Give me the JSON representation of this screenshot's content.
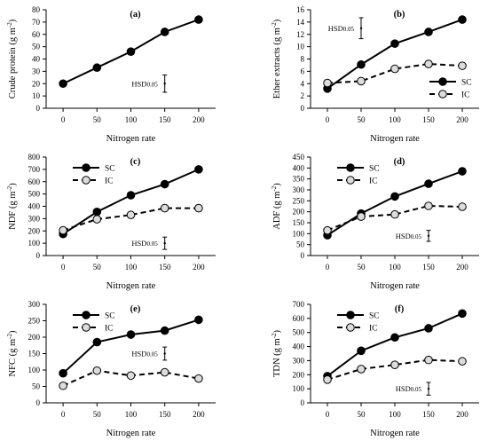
{
  "figure": {
    "xlabel": "Nitrogen rate",
    "x_categories": [
      "0",
      "50",
      "100",
      "150",
      "200"
    ]
  },
  "chart_data": [
    {
      "type": "line",
      "panel_label": "(a)",
      "ylabel": "Crude protein  (g m",
      "ylabel_sup": "-2",
      "ylabel_close": ")",
      "ylim": [
        0,
        80
      ],
      "yticks": [
        0,
        10,
        20,
        30,
        40,
        50,
        60,
        70,
        80
      ],
      "x": [
        0,
        50,
        100,
        150,
        200
      ],
      "series": [
        {
          "values": [
            20,
            33,
            46,
            62,
            72
          ],
          "marker": "filled",
          "line": "solid"
        }
      ],
      "legend": null,
      "hsd": {
        "label": "HSD",
        "sub": "0.05",
        "x": 150,
        "center": 20,
        "half": 7
      }
    },
    {
      "type": "line",
      "panel_label": "(b)",
      "ylabel": "Ether extracts  (g m",
      "ylabel_sup": "-2",
      "ylabel_close": ")",
      "ylim": [
        0,
        16
      ],
      "yticks": [
        0,
        2,
        4,
        6,
        8,
        10,
        12,
        14,
        16
      ],
      "x": [
        0,
        50,
        100,
        150,
        200
      ],
      "series": [
        {
          "name": "SC",
          "values": [
            3.2,
            7.1,
            10.5,
            12.4,
            14.4
          ],
          "marker": "filled",
          "line": "solid"
        },
        {
          "name": "IC",
          "values": [
            4.1,
            4.4,
            6.4,
            7.2,
            6.9
          ],
          "marker": "open",
          "line": "dashed"
        }
      ],
      "legend": "bottom-right",
      "hsd": {
        "label": "HSD",
        "sub": "0.05",
        "x": 50,
        "center": 13,
        "half": 1.7
      }
    },
    {
      "type": "line",
      "panel_label": "(c)",
      "ylabel": "NDF  (g m",
      "ylabel_sup": "-2",
      "ylabel_close": ")",
      "ylim": [
        0,
        800
      ],
      "yticks": [
        0,
        100,
        200,
        300,
        400,
        500,
        600,
        700,
        800
      ],
      "x": [
        0,
        50,
        100,
        150,
        200
      ],
      "series": [
        {
          "name": "SC",
          "values": [
            175,
            355,
            490,
            580,
            700
          ],
          "marker": "filled",
          "line": "solid"
        },
        {
          "name": "IC",
          "values": [
            205,
            295,
            330,
            385,
            385
          ],
          "marker": "open",
          "line": "dashed"
        }
      ],
      "legend": "top-left",
      "hsd": {
        "label": "HSD",
        "sub": "0.05",
        "x": 150,
        "center": 100,
        "half": 50
      }
    },
    {
      "type": "line",
      "panel_label": "(d)",
      "ylabel": "ADF  (g m",
      "ylabel_sup": "-2",
      "ylabel_close": ")",
      "ylim": [
        0,
        450
      ],
      "yticks": [
        0,
        50,
        100,
        150,
        200,
        250,
        300,
        350,
        400,
        450
      ],
      "x": [
        0,
        50,
        100,
        150,
        200
      ],
      "series": [
        {
          "name": "SC",
          "values": [
            93,
            192,
            270,
            328,
            385
          ],
          "marker": "filled",
          "line": "solid"
        },
        {
          "name": "IC",
          "values": [
            115,
            178,
            188,
            227,
            223
          ],
          "marker": "open",
          "line": "dashed"
        }
      ],
      "legend": "top-left",
      "hsd": {
        "label": "HSD",
        "sub": "0.05",
        "x": 150,
        "center": 90,
        "half": 25
      }
    },
    {
      "type": "line",
      "panel_label": "(e)",
      "ylabel": "NFC  (g m",
      "ylabel_sup": "-2",
      "ylabel_close": ")",
      "ylim": [
        0,
        300
      ],
      "yticks": [
        0,
        50,
        100,
        150,
        200,
        250,
        300
      ],
      "x": [
        0,
        50,
        100,
        150,
        200
      ],
      "series": [
        {
          "name": "SC",
          "values": [
            90,
            185,
            208,
            220,
            253
          ],
          "marker": "filled",
          "line": "solid"
        },
        {
          "name": "IC",
          "values": [
            52,
            98,
            83,
            93,
            74
          ],
          "marker": "open",
          "line": "dashed"
        }
      ],
      "legend": "top-left",
      "hsd": {
        "label": "HSD",
        "sub": "0.05",
        "x": 150,
        "center": 150,
        "half": 20
      }
    },
    {
      "type": "line",
      "panel_label": "(f)",
      "ylabel": "TDN  (g m",
      "ylabel_sup": "-2",
      "ylabel_close": ")",
      "ylim": [
        0,
        700
      ],
      "yticks": [
        0,
        100,
        200,
        300,
        400,
        500,
        600,
        700
      ],
      "x": [
        0,
        50,
        100,
        150,
        200
      ],
      "series": [
        {
          "name": "SC",
          "values": [
            190,
            370,
            465,
            530,
            635
          ],
          "marker": "filled",
          "line": "solid"
        },
        {
          "name": "IC",
          "values": [
            165,
            240,
            270,
            305,
            295
          ],
          "marker": "open",
          "line": "dashed"
        }
      ],
      "legend": "top-left",
      "hsd": {
        "label": "HSD",
        "sub": "0.05",
        "x": 150,
        "center": 100,
        "half": 45
      }
    }
  ]
}
